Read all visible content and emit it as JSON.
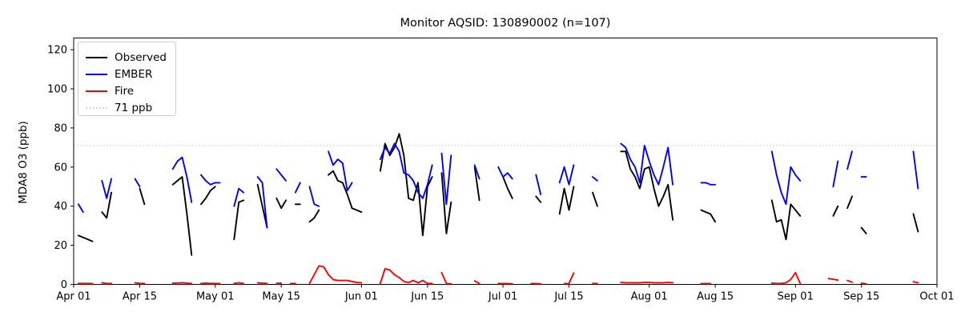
{
  "figure": {
    "title": "Monitor AQSID: 130890002 (n=107)",
    "ylabel": "MDA8 O3 (ppb)"
  },
  "legend": {
    "entries": [
      {
        "label": "Observed",
        "color": "#000000",
        "style": "solid"
      },
      {
        "label": "EMBER",
        "color": "#0000ff",
        "style": "solid"
      },
      {
        "label": "Fire",
        "color": "#ff0000",
        "style": "solid"
      },
      {
        "label": "71 ppb",
        "color": "#d3d3d3",
        "style": "dotted"
      }
    ]
  },
  "chart_data": {
    "type": "line",
    "title": "Monitor AQSID: 130890002 (n=107)",
    "ylabel": "MDA8 O3 (ppb)",
    "xlabel": "",
    "n": 107,
    "ylim": [
      0,
      126
    ],
    "yticks": [
      0,
      20,
      40,
      60,
      80,
      100,
      120
    ],
    "grid": false,
    "legend_position": "upper left",
    "threshold": {
      "value": 71,
      "label": "71 ppb",
      "color": "#d3d3d3",
      "style": "dotted"
    },
    "x_axis": {
      "start_day": 0,
      "end_day": 183,
      "start_label": "Apr 01",
      "tick_days": [
        0,
        14,
        30,
        44,
        61,
        75,
        91,
        105,
        122,
        136,
        153,
        167,
        183
      ],
      "tick_labels": [
        "Apr 01",
        "Apr 15",
        "May 01",
        "May 15",
        "Jun 01",
        "Jun 15",
        "Jul 01",
        "Jul 15",
        "Aug 01",
        "Aug 15",
        "Sep 01",
        "Sep 15",
        "Oct 01"
      ]
    },
    "series": [
      {
        "name": "Observed",
        "color": "#000000",
        "points": [
          [
            1,
            25
          ],
          [
            2,
            24
          ],
          [
            3,
            23
          ],
          [
            4,
            22
          ],
          [
            6,
            37
          ],
          [
            7,
            34
          ],
          [
            8,
            47
          ],
          [
            14,
            49
          ],
          [
            15,
            41
          ],
          [
            21,
            51
          ],
          [
            22,
            53
          ],
          [
            23,
            55
          ],
          [
            24,
            36
          ],
          [
            25,
            15
          ],
          [
            27,
            41
          ],
          [
            28,
            44
          ],
          [
            29,
            48
          ],
          [
            30,
            50
          ],
          [
            34,
            23
          ],
          [
            35,
            42
          ],
          [
            36,
            43
          ],
          [
            39,
            51
          ],
          [
            40,
            40
          ],
          [
            41,
            29
          ],
          [
            43,
            44
          ],
          [
            44,
            39
          ],
          [
            45,
            43
          ],
          [
            47,
            41
          ],
          [
            48,
            41
          ],
          [
            50,
            32
          ],
          [
            51,
            34
          ],
          [
            52,
            38
          ],
          [
            54,
            56
          ],
          [
            55,
            58
          ],
          [
            56,
            53
          ],
          [
            57,
            52
          ],
          [
            58,
            46
          ],
          [
            59,
            39
          ],
          [
            60,
            38
          ],
          [
            61,
            37
          ],
          [
            65,
            58
          ],
          [
            66,
            72
          ],
          [
            67,
            66
          ],
          [
            68,
            70
          ],
          [
            69,
            77
          ],
          [
            70,
            66
          ],
          [
            71,
            44
          ],
          [
            72,
            43
          ],
          [
            73,
            52
          ],
          [
            74,
            25
          ],
          [
            75,
            50
          ],
          [
            76,
            55
          ],
          [
            78,
            57
          ],
          [
            79,
            26
          ],
          [
            80,
            42
          ],
          [
            85,
            60
          ],
          [
            86,
            43
          ],
          [
            91,
            55
          ],
          [
            92,
            49
          ],
          [
            93,
            44
          ],
          [
            98,
            45
          ],
          [
            99,
            42
          ],
          [
            103,
            36
          ],
          [
            104,
            49
          ],
          [
            105,
            38
          ],
          [
            106,
            50
          ],
          [
            110,
            47
          ],
          [
            111,
            40
          ],
          [
            116,
            68
          ],
          [
            117,
            68
          ],
          [
            118,
            59
          ],
          [
            119,
            55
          ],
          [
            120,
            49
          ],
          [
            121,
            59
          ],
          [
            122,
            60
          ],
          [
            123,
            49
          ],
          [
            124,
            40
          ],
          [
            125,
            45
          ],
          [
            126,
            51
          ],
          [
            127,
            33
          ],
          [
            133,
            38
          ],
          [
            134,
            37
          ],
          [
            135,
            36
          ],
          [
            136,
            32
          ],
          [
            148,
            43
          ],
          [
            149,
            32
          ],
          [
            150,
            33
          ],
          [
            151,
            23
          ],
          [
            152,
            41
          ],
          [
            153,
            38
          ],
          [
            154,
            35
          ],
          [
            161,
            35
          ],
          [
            162,
            40
          ],
          [
            164,
            39
          ],
          [
            165,
            45
          ],
          [
            167,
            29
          ],
          [
            168,
            26
          ],
          [
            178,
            36
          ],
          [
            179,
            27
          ]
        ]
      },
      {
        "name": "EMBER",
        "color": "#0000ff",
        "points": [
          [
            1,
            41
          ],
          [
            2,
            37
          ],
          [
            6,
            53
          ],
          [
            7,
            44
          ],
          [
            8,
            54
          ],
          [
            13,
            54
          ],
          [
            14,
            50
          ],
          [
            21,
            59
          ],
          [
            22,
            63
          ],
          [
            23,
            65
          ],
          [
            24,
            55
          ],
          [
            25,
            42
          ],
          [
            27,
            56
          ],
          [
            28,
            53
          ],
          [
            29,
            51
          ],
          [
            30,
            52
          ],
          [
            31,
            52
          ],
          [
            34,
            40
          ],
          [
            35,
            49
          ],
          [
            36,
            47
          ],
          [
            39,
            55
          ],
          [
            40,
            52
          ],
          [
            41,
            29
          ],
          [
            43,
            59
          ],
          [
            44,
            56
          ],
          [
            45,
            53
          ],
          [
            47,
            47
          ],
          [
            48,
            52
          ],
          [
            50,
            50
          ],
          [
            51,
            41
          ],
          [
            52,
            40
          ],
          [
            54,
            68
          ],
          [
            55,
            61
          ],
          [
            56,
            64
          ],
          [
            57,
            62
          ],
          [
            58,
            48
          ],
          [
            59,
            52
          ],
          [
            65,
            64
          ],
          [
            66,
            70
          ],
          [
            67,
            67
          ],
          [
            68,
            72
          ],
          [
            69,
            68
          ],
          [
            70,
            57
          ],
          [
            71,
            56
          ],
          [
            72,
            53
          ],
          [
            73,
            47
          ],
          [
            74,
            44
          ],
          [
            75,
            51
          ],
          [
            76,
            61
          ],
          [
            78,
            67
          ],
          [
            79,
            41
          ],
          [
            80,
            66
          ],
          [
            85,
            61
          ],
          [
            86,
            54
          ],
          [
            90,
            60
          ],
          [
            91,
            55
          ],
          [
            92,
            57
          ],
          [
            93,
            54
          ],
          [
            98,
            56
          ],
          [
            99,
            46
          ],
          [
            103,
            52
          ],
          [
            104,
            60
          ],
          [
            105,
            51
          ],
          [
            106,
            61
          ],
          [
            110,
            55
          ],
          [
            111,
            53
          ],
          [
            116,
            72
          ],
          [
            117,
            70
          ],
          [
            118,
            64
          ],
          [
            119,
            60
          ],
          [
            120,
            52
          ],
          [
            121,
            71
          ],
          [
            122,
            63
          ],
          [
            123,
            56
          ],
          [
            124,
            51
          ],
          [
            125,
            60
          ],
          [
            126,
            70
          ],
          [
            127,
            51
          ],
          [
            133,
            52
          ],
          [
            134,
            52
          ],
          [
            135,
            51
          ],
          [
            136,
            51
          ],
          [
            148,
            68
          ],
          [
            149,
            56
          ],
          [
            150,
            47
          ],
          [
            151,
            41
          ],
          [
            152,
            60
          ],
          [
            153,
            56
          ],
          [
            154,
            53
          ],
          [
            161,
            50
          ],
          [
            162,
            63
          ],
          [
            164,
            59
          ],
          [
            165,
            68
          ],
          [
            167,
            55
          ],
          [
            168,
            55
          ],
          [
            178,
            68
          ],
          [
            179,
            49
          ]
        ]
      },
      {
        "name": "Fire",
        "color": "#ff0000",
        "points": [
          [
            1,
            0.5
          ],
          [
            2,
            0.5
          ],
          [
            3,
            0.5
          ],
          [
            4,
            0.4
          ],
          [
            6,
            0.8
          ],
          [
            7,
            0.5
          ],
          [
            8,
            0.5
          ],
          [
            13,
            0.8
          ],
          [
            14,
            0.5
          ],
          [
            15,
            0.5
          ],
          [
            21,
            0.6
          ],
          [
            22,
            0.7
          ],
          [
            23,
            0.8
          ],
          [
            24,
            0.6
          ],
          [
            25,
            0.5
          ],
          [
            27,
            0.5
          ],
          [
            28,
            0.6
          ],
          [
            29,
            0.5
          ],
          [
            30,
            0.5
          ],
          [
            31,
            0.4
          ],
          [
            34,
            0.5
          ],
          [
            35,
            0.8
          ],
          [
            36,
            0.5
          ],
          [
            39,
            0.8
          ],
          [
            40,
            0.6
          ],
          [
            41,
            0.5
          ],
          [
            43,
            0.5
          ],
          [
            44,
            0.6
          ],
          [
            46,
            0.5
          ],
          [
            47,
            0.5
          ],
          [
            50,
            0.5
          ],
          [
            51,
            5
          ],
          [
            52,
            9.5
          ],
          [
            53,
            9
          ],
          [
            54,
            5
          ],
          [
            55,
            2.5
          ],
          [
            56,
            2
          ],
          [
            57,
            2
          ],
          [
            58,
            2
          ],
          [
            59,
            1.5
          ],
          [
            60,
            1
          ],
          [
            61,
            0.8
          ],
          [
            65,
            0.5
          ],
          [
            66,
            8
          ],
          [
            67,
            7.4
          ],
          [
            68,
            5
          ],
          [
            69,
            3.5
          ],
          [
            70,
            1.5
          ],
          [
            71,
            1
          ],
          [
            72,
            2
          ],
          [
            73,
            0.8
          ],
          [
            74,
            2
          ],
          [
            75,
            0.5
          ],
          [
            76,
            0.5
          ],
          [
            78,
            6
          ],
          [
            79,
            0.5
          ],
          [
            80,
            0.3
          ],
          [
            85,
            1.8
          ],
          [
            86,
            0.4
          ],
          [
            90,
            0.5
          ],
          [
            91,
            0.4
          ],
          [
            92,
            0.4
          ],
          [
            93,
            0.3
          ],
          [
            97,
            0.4
          ],
          [
            98,
            0.4
          ],
          [
            99,
            0.3
          ],
          [
            104,
            0.4
          ],
          [
            105,
            0.5
          ],
          [
            106,
            5.8
          ],
          [
            110,
            0.5
          ],
          [
            111,
            0.4
          ],
          [
            116,
            1
          ],
          [
            117,
            0.8
          ],
          [
            118,
            0.8
          ],
          [
            119,
            0.8
          ],
          [
            120,
            0.8
          ],
          [
            121,
            1
          ],
          [
            122,
            1
          ],
          [
            123,
            0.8
          ],
          [
            124,
            0.8
          ],
          [
            125,
            0.8
          ],
          [
            126,
            1
          ],
          [
            127,
            0.8
          ],
          [
            133,
            0.4
          ],
          [
            134,
            0.4
          ],
          [
            135,
            0.4
          ],
          [
            148,
            0.6
          ],
          [
            149,
            0.5
          ],
          [
            150,
            0.5
          ],
          [
            151,
            0.8
          ],
          [
            152,
            2.5
          ],
          [
            153,
            6
          ],
          [
            154,
            0.5
          ],
          [
            160,
            3
          ],
          [
            161,
            2.6
          ],
          [
            162,
            2.2
          ],
          [
            164,
            2
          ],
          [
            165,
            1.2
          ],
          [
            167,
            0.6
          ],
          [
            168,
            0.3
          ],
          [
            178,
            1.4
          ],
          [
            179,
            0.8
          ]
        ]
      }
    ]
  }
}
